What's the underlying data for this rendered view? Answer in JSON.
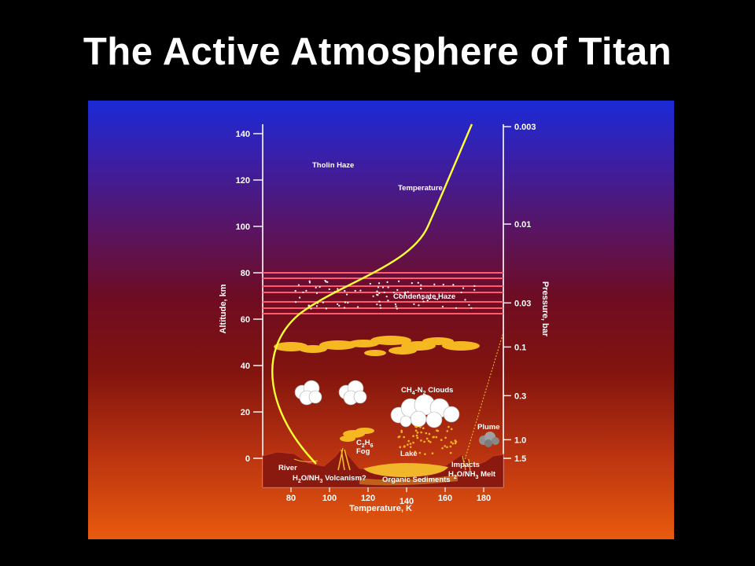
{
  "slide": {
    "title": "The Active Atmosphere of Titan"
  },
  "colors": {
    "background_top": "#1a2ad8",
    "background_mid": "#7a0c1c",
    "background_bottom": "#e85a10",
    "temperature_curve": "#ffff33",
    "cloud_yellow": "#f5b820",
    "haze_band": "#ff5a6e",
    "surface": "#8a1a10",
    "lake": "#f2b62a"
  },
  "diagram": {
    "left_axis": {
      "title": "Altitude, km",
      "ticks": [
        {
          "value": 140,
          "label": "140"
        },
        {
          "value": 120,
          "label": "120"
        },
        {
          "value": 100,
          "label": "100"
        },
        {
          "value": 80,
          "label": "80"
        },
        {
          "value": 60,
          "label": "60"
        },
        {
          "value": 40,
          "label": "40"
        },
        {
          "value": 20,
          "label": "20"
        },
        {
          "value": 0,
          "label": "0"
        }
      ]
    },
    "right_axis": {
      "title": "Pressure, bar",
      "ticks": [
        {
          "altitude": 143,
          "label": "0.003"
        },
        {
          "altitude": 101,
          "label": "0.01"
        },
        {
          "altitude": 67,
          "label": "0.03"
        },
        {
          "altitude": 48,
          "label": "0.1"
        },
        {
          "altitude": 27,
          "label": "0.3"
        },
        {
          "altitude": 8,
          "label": "1.0"
        },
        {
          "altitude": 0,
          "label": "1.5"
        }
      ]
    },
    "bottom_axis": {
      "title": "Temperature, K",
      "ticks": [
        {
          "value": 80,
          "label": "80"
        },
        {
          "value": 100,
          "label": "100"
        },
        {
          "value": 120,
          "label": "120"
        },
        {
          "value": 140,
          "label": "140"
        },
        {
          "value": 160,
          "label": "160"
        },
        {
          "value": 180,
          "label": "180"
        }
      ]
    },
    "labels": {
      "tholin_haze": "Tholin Haze",
      "temperature": "Temperature",
      "condensate_haze": "Condensate Haze",
      "clouds_pre": "CH",
      "clouds_sub1": "4",
      "clouds_mid": "-N",
      "clouds_sub2": "2",
      "clouds_post": " Clouds",
      "plume": "Plume",
      "fog_pre": "C",
      "fog_sub1": "2",
      "fog_mid": "H",
      "fog_sub2": "6",
      "fog_word": "Fog",
      "lake": "Lake",
      "river": "River",
      "volcanism_pre": "H",
      "volcanism_sub1": "2",
      "volcanism_mid": "O/NH",
      "volcanism_sub2": "3",
      "volcanism_post": " Volcanism?",
      "organic_sediments": "Organic Sediments",
      "impacts": "Impacts",
      "melt_pre": "H",
      "melt_sub1": "2",
      "melt_mid": "O/NH",
      "melt_sub2": "3",
      "melt_post": " Melt"
    }
  }
}
